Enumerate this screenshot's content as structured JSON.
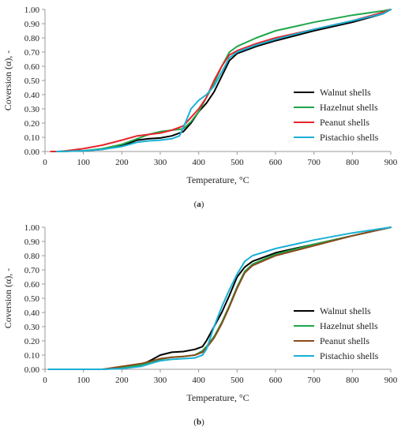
{
  "chart_data": [
    {
      "type": "line",
      "panel_label": "(a)",
      "panel_letter": "a",
      "title": "",
      "xlabel": "Temperature, °C",
      "ylabel": "Coversion (α), -",
      "xlim": [
        0,
        900
      ],
      "ylim": [
        0,
        1
      ],
      "xticks": [
        0,
        100,
        200,
        300,
        400,
        500,
        600,
        700,
        800,
        900
      ],
      "xtick_labels": [
        "0",
        "100",
        "200",
        "300",
        "400",
        "500",
        "600",
        "700",
        "800",
        "900"
      ],
      "yticks": [
        0,
        0.1,
        0.2,
        0.3,
        0.4,
        0.5,
        0.6,
        0.7,
        0.8,
        0.9,
        1
      ],
      "ytick_labels": [
        "0.00",
        "0.10",
        "0.20",
        "0.30",
        "0.40",
        "0.50",
        "0.60",
        "0.70",
        "0.80",
        "0.90",
        "1.00"
      ],
      "grid": false,
      "legend_position": "right",
      "series": [
        {
          "name": "Walnut shells",
          "color": "#000000",
          "x": [
            30,
            100,
            150,
            200,
            240,
            270,
            300,
            330,
            360,
            380,
            400,
            420,
            440,
            460,
            480,
            500,
            550,
            600,
            700,
            800,
            880,
            900
          ],
          "y": [
            0.0,
            0.005,
            0.015,
            0.04,
            0.08,
            0.09,
            0.095,
            0.11,
            0.14,
            0.2,
            0.28,
            0.34,
            0.42,
            0.53,
            0.64,
            0.69,
            0.74,
            0.78,
            0.85,
            0.91,
            0.97,
            1.0
          ]
        },
        {
          "name": "Hazelnut shells",
          "color": "#1fa64a",
          "x": [
            30,
            100,
            150,
            200,
            240,
            270,
            300,
            330,
            360,
            380,
            400,
            420,
            440,
            460,
            480,
            500,
            550,
            600,
            700,
            800,
            880,
            900
          ],
          "y": [
            0.0,
            0.005,
            0.02,
            0.05,
            0.09,
            0.12,
            0.14,
            0.15,
            0.16,
            0.21,
            0.28,
            0.38,
            0.48,
            0.6,
            0.7,
            0.74,
            0.8,
            0.85,
            0.91,
            0.96,
            0.99,
            1.0
          ]
        },
        {
          "name": "Peanut shells",
          "color": "#e8242a",
          "x": [
            15,
            40,
            100,
            150,
            200,
            240,
            270,
            300,
            330,
            360,
            380,
            400,
            420,
            440,
            460,
            480,
            500,
            550,
            600,
            700,
            800,
            880,
            900
          ],
          "y": [
            0.0,
            0.0,
            0.02,
            0.045,
            0.08,
            0.11,
            0.12,
            0.13,
            0.15,
            0.18,
            0.24,
            0.3,
            0.38,
            0.5,
            0.6,
            0.68,
            0.71,
            0.76,
            0.8,
            0.86,
            0.92,
            0.98,
            1.0
          ]
        },
        {
          "name": "Pistachio shells",
          "color": "#1ab0d4",
          "x": [
            30,
            100,
            150,
            200,
            240,
            270,
            300,
            330,
            350,
            365,
            380,
            400,
            420,
            440,
            460,
            480,
            500,
            550,
            600,
            700,
            800,
            880,
            900
          ],
          "y": [
            0.0,
            0.005,
            0.015,
            0.035,
            0.065,
            0.075,
            0.08,
            0.09,
            0.11,
            0.2,
            0.3,
            0.36,
            0.4,
            0.46,
            0.56,
            0.66,
            0.7,
            0.75,
            0.79,
            0.86,
            0.92,
            0.97,
            1.0
          ]
        }
      ]
    },
    {
      "type": "line",
      "panel_label": "(b)",
      "panel_letter": "b",
      "title": "",
      "xlabel": "Temperature, °C",
      "ylabel": "Coversion (α), -",
      "xlim": [
        0,
        900
      ],
      "ylim": [
        0,
        1
      ],
      "xticks": [
        0,
        100,
        200,
        300,
        400,
        500,
        600,
        700,
        800,
        900
      ],
      "xtick_labels": [
        "0",
        "100",
        "200",
        "300",
        "400",
        "500",
        "600",
        "700",
        "800",
        "900"
      ],
      "yticks": [
        0,
        0.1,
        0.2,
        0.3,
        0.4,
        0.5,
        0.6,
        0.7,
        0.8,
        0.9,
        1
      ],
      "ytick_labels": [
        "0.00",
        "0.10",
        "0.20",
        "0.30",
        "0.40",
        "0.50",
        "0.60",
        "0.70",
        "0.80",
        "0.90",
        "1.00"
      ],
      "grid": false,
      "legend_position": "right",
      "series": [
        {
          "name": "Walnut shells",
          "color": "#000000",
          "x": [
            10,
            150,
            200,
            250,
            280,
            300,
            330,
            360,
            390,
            410,
            420,
            440,
            460,
            480,
            500,
            520,
            540,
            600,
            700,
            800,
            900
          ],
          "y": [
            0.0,
            0.0,
            0.01,
            0.03,
            0.07,
            0.1,
            0.12,
            0.125,
            0.14,
            0.16,
            0.2,
            0.3,
            0.4,
            0.52,
            0.65,
            0.72,
            0.76,
            0.82,
            0.88,
            0.94,
            1.0
          ]
        },
        {
          "name": "Hazelnut shells",
          "color": "#1fa64a",
          "x": [
            10,
            150,
            200,
            250,
            280,
            300,
            330,
            360,
            390,
            410,
            420,
            440,
            460,
            480,
            500,
            520,
            540,
            600,
            700,
            800,
            900
          ],
          "y": [
            0.0,
            0.0,
            0.015,
            0.03,
            0.055,
            0.07,
            0.085,
            0.09,
            0.1,
            0.13,
            0.16,
            0.23,
            0.33,
            0.45,
            0.58,
            0.69,
            0.74,
            0.81,
            0.88,
            0.94,
            1.0
          ]
        },
        {
          "name": "Peanut shells",
          "color": "#8a4a1c",
          "x": [
            10,
            150,
            200,
            250,
            280,
            300,
            330,
            360,
            390,
            410,
            420,
            440,
            460,
            480,
            500,
            520,
            540,
            600,
            700,
            800,
            900
          ],
          "y": [
            0.0,
            0.0,
            0.02,
            0.04,
            0.06,
            0.075,
            0.085,
            0.09,
            0.1,
            0.12,
            0.15,
            0.22,
            0.32,
            0.44,
            0.57,
            0.68,
            0.73,
            0.8,
            0.87,
            0.94,
            1.0
          ]
        },
        {
          "name": "Pistachio shells",
          "color": "#1ab0d4",
          "x": [
            10,
            150,
            200,
            250,
            280,
            300,
            330,
            360,
            390,
            410,
            420,
            440,
            460,
            480,
            500,
            520,
            540,
            600,
            700,
            800,
            900
          ],
          "y": [
            0.0,
            0.0,
            0.005,
            0.02,
            0.045,
            0.06,
            0.07,
            0.075,
            0.08,
            0.1,
            0.14,
            0.3,
            0.44,
            0.56,
            0.67,
            0.76,
            0.8,
            0.85,
            0.91,
            0.96,
            1.0
          ]
        }
      ]
    }
  ]
}
